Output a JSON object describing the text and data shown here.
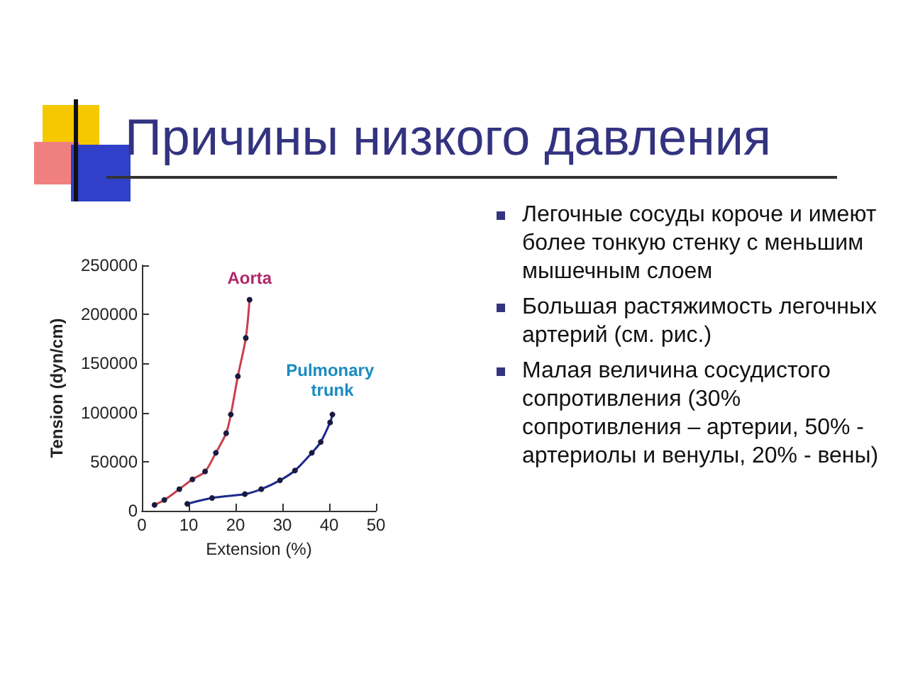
{
  "chart_data": {
    "type": "line",
    "title": "Причины низкого давления",
    "xlabel": "Extension (%)",
    "ylabel": "Tension (dyn/cm)",
    "annotations": [
      "Легочные сосуды короче и имеют более тонкую стенку с меньшим мышечным слоем",
      "Большая растяжимость легочных артерий (см. рис.)",
      "Малая величина сосудистого сопротивления (30% сопротивления – артерии, 50% - артериолы и венулы, 20% - вены)"
    ],
    "series": [
      {
        "name": "Aorta",
        "color": "#c8404c",
        "x": [
          2.7,
          4.8,
          8,
          10.8,
          13.5,
          15.8,
          18,
          19,
          20.5,
          22.2,
          23
        ],
        "values": [
          6000,
          11000,
          22000,
          32000,
          40000,
          59000,
          79000,
          98000,
          137000,
          176000,
          215000
        ]
      },
      {
        "name": "Pulmonary trunk",
        "color": "#1c2a8c",
        "x": [
          9.7,
          15,
          22,
          25.5,
          29.5,
          32.7,
          36.3,
          38.2,
          40.2,
          40.7
        ],
        "values": [
          7000,
          13000,
          17000,
          22000,
          31000,
          41000,
          59000,
          70000,
          90000,
          98000
        ]
      }
    ],
    "xlim": [
      0,
      50
    ],
    "xticks": [
      0,
      10,
      20,
      30,
      40,
      50
    ],
    "ylim": [
      0,
      250000
    ],
    "yticks": [
      0,
      50000,
      100000,
      150000,
      200000,
      250000
    ],
    "grid": false,
    "marker": "circle"
  }
}
